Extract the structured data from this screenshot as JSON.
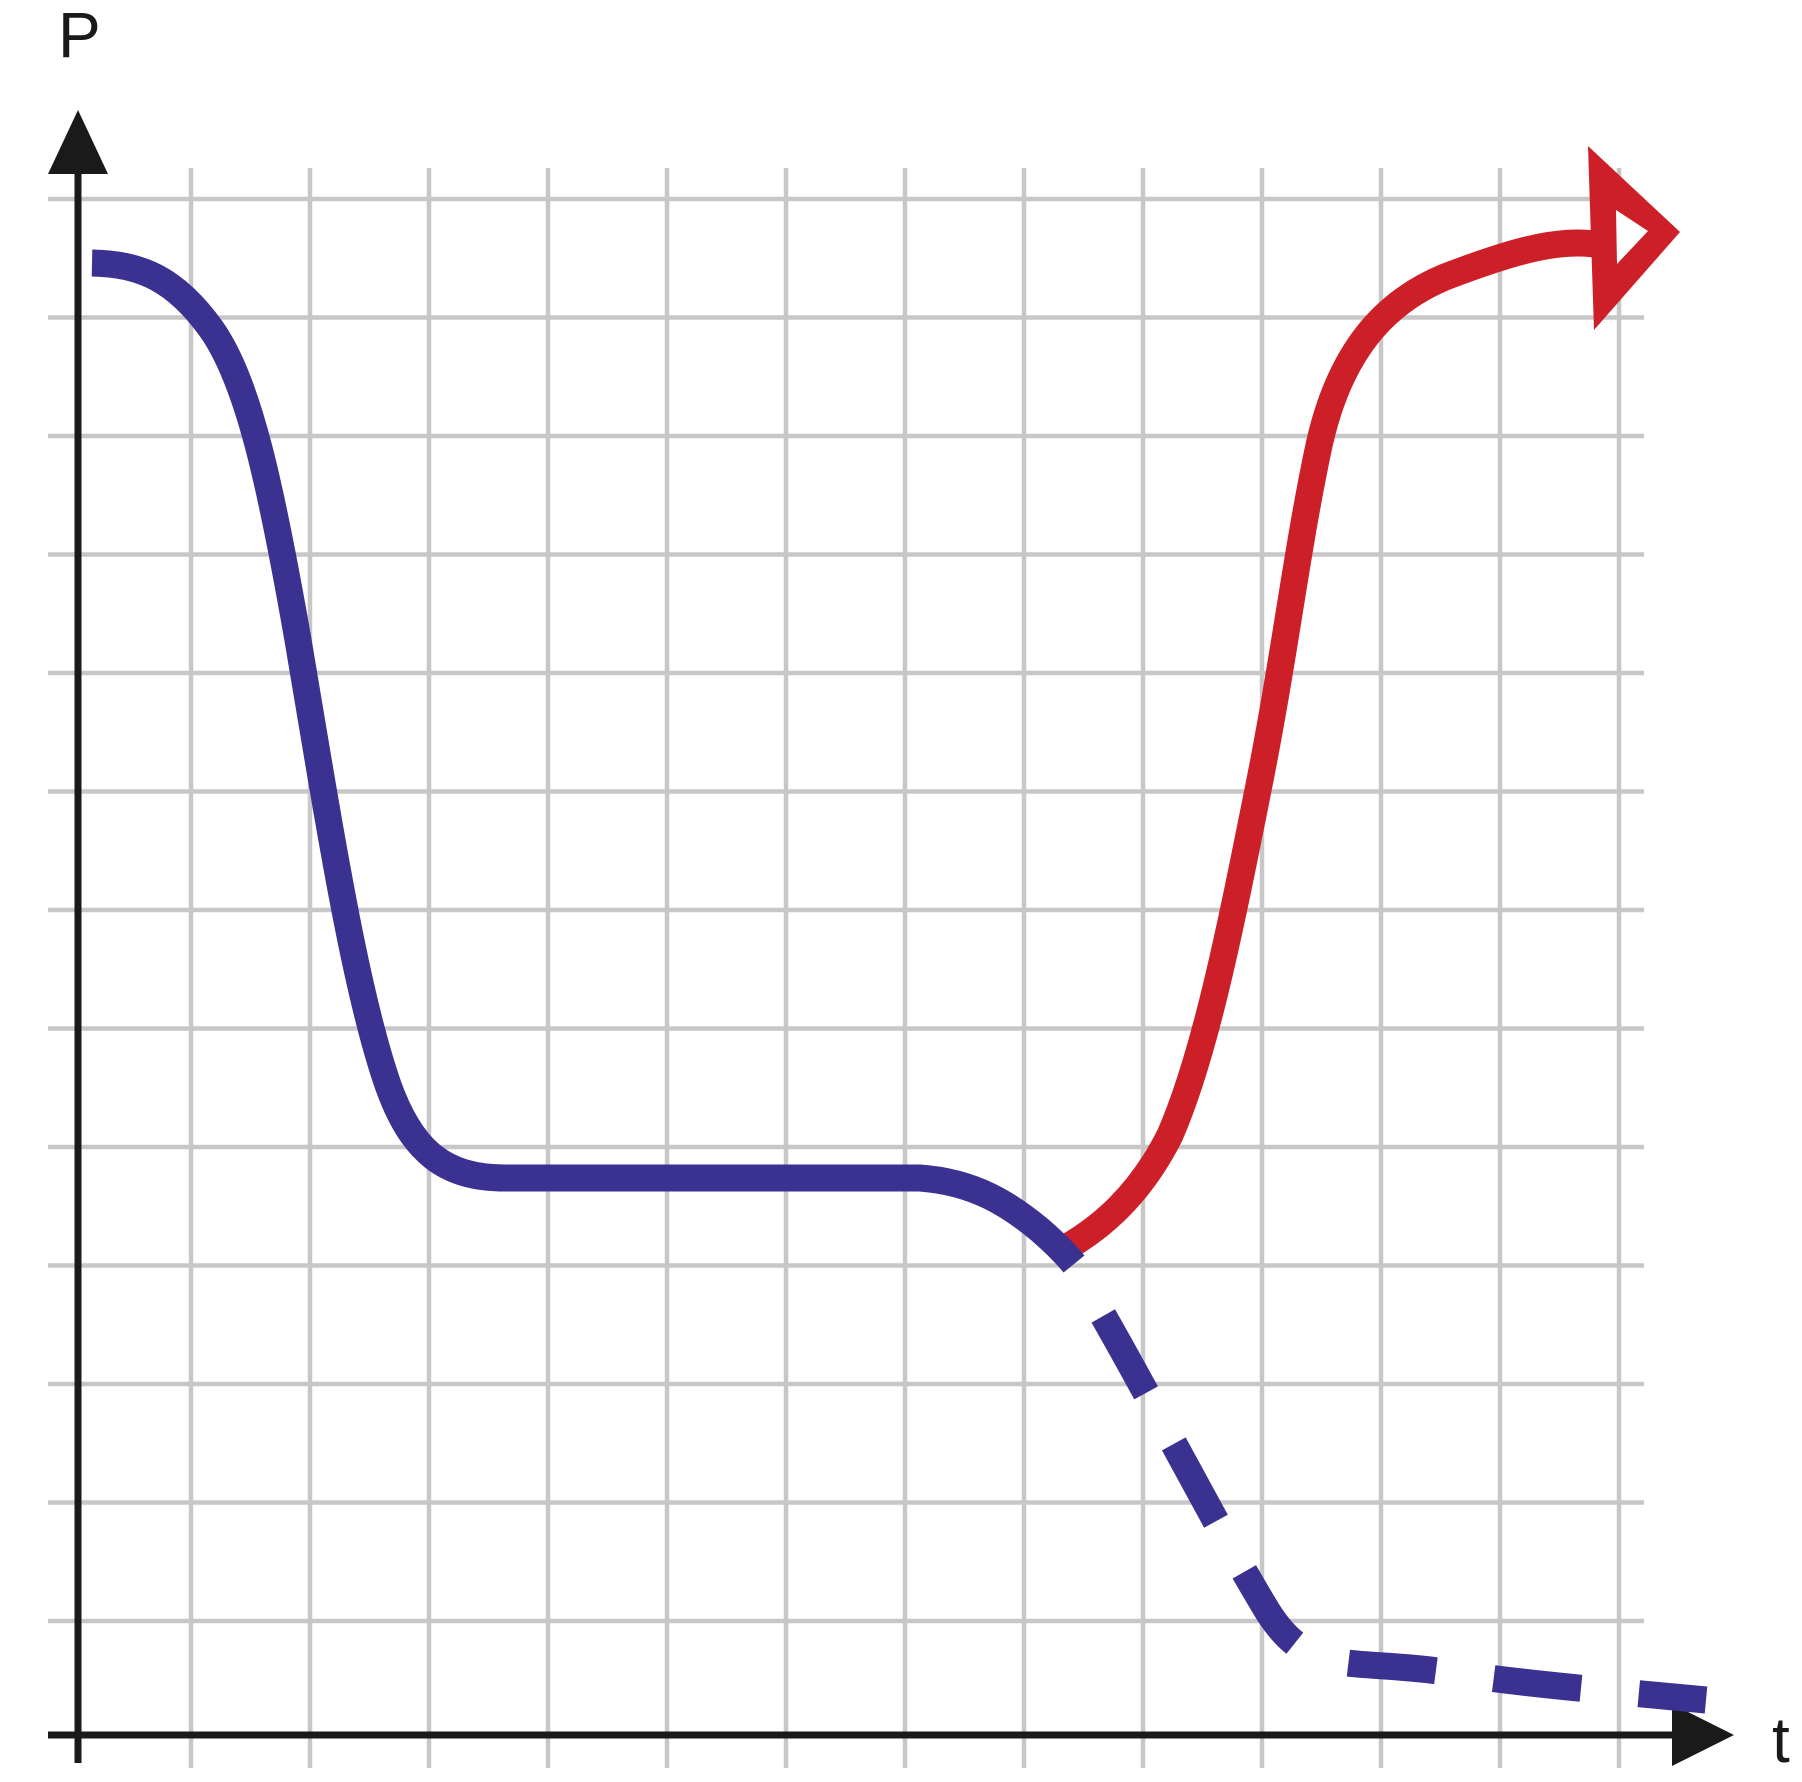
{
  "theme": {
    "background": "#ffffff",
    "blue": "#3A3191",
    "red": "#CD1F28",
    "grid": "#C7C7C7",
    "axis": "#1A1A1A",
    "white": "#FFFFFF"
  },
  "chart_data": {
    "type": "line",
    "title": "",
    "xlabel": "t",
    "ylabel": "P",
    "x_tick_labels": [],
    "y_tick_labels": [],
    "grid": true,
    "grid_cols": 13,
    "grid_rows": 13,
    "axis_range_grid_units": {
      "x": [
        0,
        13.8
      ],
      "y": [
        0,
        13.3
      ]
    },
    "legend": "none",
    "series": [
      {
        "name": "population-initial-decline",
        "color": "#3A3191",
        "style": "solid",
        "arrow_end": false,
        "points_t_P": [
          [
            0.12,
            12.4
          ],
          [
            0.6,
            12.35
          ],
          [
            1.1,
            12.0
          ],
          [
            1.45,
            10.7
          ],
          [
            1.9,
            8.5
          ],
          [
            2.3,
            6.35
          ],
          [
            2.7,
            5.2
          ],
          [
            3.2,
            4.73
          ],
          [
            4.4,
            4.68
          ],
          [
            6.2,
            4.68
          ],
          [
            7.1,
            4.68
          ],
          [
            7.7,
            4.5
          ],
          [
            8.1,
            4.2
          ],
          [
            8.35,
            4.0
          ]
        ]
      },
      {
        "name": "population-recovery",
        "color": "#CD1F28",
        "style": "solid",
        "arrow_end": true,
        "points_t_P": [
          [
            8.35,
            4.0
          ],
          [
            8.8,
            4.5
          ],
          [
            9.2,
            5.3
          ],
          [
            9.65,
            6.8
          ],
          [
            9.95,
            7.95
          ],
          [
            10.3,
            9.9
          ],
          [
            10.6,
            11.05
          ],
          [
            11.0,
            12.0
          ],
          [
            11.7,
            12.45
          ],
          [
            12.4,
            12.55
          ],
          [
            13.4,
            12.65
          ]
        ]
      },
      {
        "name": "population-continued-decline",
        "color": "#3A3191",
        "style": "dashed",
        "arrow_end": false,
        "points_t_P": [
          [
            8.35,
            3.95
          ],
          [
            8.9,
            3.0
          ],
          [
            9.5,
            1.9
          ],
          [
            10.0,
            1.0
          ],
          [
            10.5,
            0.62
          ],
          [
            11.1,
            0.55
          ],
          [
            12.0,
            0.45
          ],
          [
            12.9,
            0.38
          ],
          [
            13.7,
            0.28
          ]
        ]
      }
    ]
  }
}
